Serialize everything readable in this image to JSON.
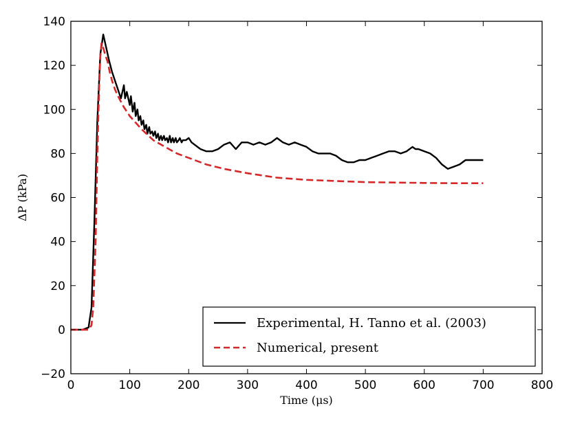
{
  "chart_data": {
    "type": "line",
    "xlabel": "Time (μs)",
    "ylabel": "ΔP (kPa)",
    "xlim": [
      0,
      800
    ],
    "ylim": [
      -20,
      140
    ],
    "xticks": [
      0,
      100,
      200,
      300,
      400,
      500,
      600,
      700,
      800
    ],
    "yticks": [
      -20,
      0,
      20,
      40,
      60,
      80,
      100,
      120,
      140
    ],
    "xtick_labels": [
      "0",
      "100",
      "200",
      "300",
      "400",
      "500",
      "600",
      "700",
      "800"
    ],
    "ytick_labels": [
      "−20",
      "0",
      "20",
      "40",
      "60",
      "80",
      "100",
      "120",
      "140"
    ],
    "grid": false,
    "legend_position": "lower-right",
    "series": [
      {
        "name": "Experimental, H. Tanno et al. (2003)",
        "color": "#000000",
        "style": "solid",
        "x": [
          0,
          20,
          30,
          35,
          40,
          45,
          50,
          55,
          60,
          65,
          70,
          75,
          80,
          85,
          90,
          92,
          95,
          100,
          102,
          105,
          108,
          110,
          113,
          115,
          118,
          120,
          123,
          125,
          128,
          130,
          133,
          135,
          138,
          140,
          143,
          145,
          148,
          150,
          153,
          155,
          158,
          160,
          163,
          165,
          168,
          170,
          173,
          175,
          178,
          180,
          183,
          185,
          188,
          190,
          195,
          200,
          205,
          210,
          220,
          230,
          240,
          250,
          260,
          270,
          280,
          290,
          300,
          310,
          320,
          330,
          340,
          350,
          355,
          360,
          370,
          380,
          390,
          400,
          410,
          420,
          430,
          440,
          450,
          460,
          470,
          480,
          490,
          500,
          510,
          520,
          530,
          540,
          550,
          560,
          570,
          580,
          585,
          590,
          600,
          610,
          620,
          630,
          640,
          650,
          660,
          670,
          680,
          690,
          700
        ],
        "y": [
          0,
          0,
          1,
          10,
          50,
          95,
          125,
          134,
          128,
          122,
          117,
          113,
          109,
          105,
          111,
          105,
          108,
          102,
          106,
          99,
          103,
          97,
          100,
          95,
          97,
          93,
          95,
          91,
          93,
          89,
          92,
          89,
          90,
          88,
          90,
          87,
          89,
          86,
          88,
          86,
          88,
          86,
          87,
          85,
          88,
          85,
          87,
          85,
          87,
          85,
          86,
          87,
          85,
          86,
          86,
          87,
          85,
          84,
          82,
          81,
          81,
          82,
          84,
          85,
          82,
          85,
          85,
          84,
          85,
          84,
          85,
          87,
          86,
          85,
          84,
          85,
          84,
          83,
          81,
          80,
          80,
          80,
          79,
          77,
          76,
          76,
          77,
          77,
          78,
          79,
          80,
          81,
          81,
          80,
          81,
          83,
          82,
          82,
          81,
          80,
          78,
          75,
          73,
          74,
          75,
          77,
          77,
          77,
          77
        ]
      },
      {
        "name": "Numerical, present",
        "color": "#d62728",
        "style": "dashed",
        "x": [
          0,
          30,
          35,
          38,
          42,
          45,
          48,
          50,
          52,
          55,
          58,
          62,
          66,
          70,
          75,
          80,
          90,
          100,
          120,
          140,
          160,
          180,
          200,
          230,
          260,
          300,
          350,
          400,
          450,
          500,
          550,
          600,
          650,
          700
        ],
        "y": [
          0,
          0,
          2,
          10,
          40,
          80,
          110,
          124,
          130,
          128,
          125,
          122,
          117,
          113,
          109,
          106,
          101,
          97,
          91,
          86,
          83,
          80,
          78,
          75,
          73,
          71,
          69,
          68,
          67.5,
          67,
          66.8,
          66.6,
          66.5,
          66.5
        ]
      }
    ]
  }
}
